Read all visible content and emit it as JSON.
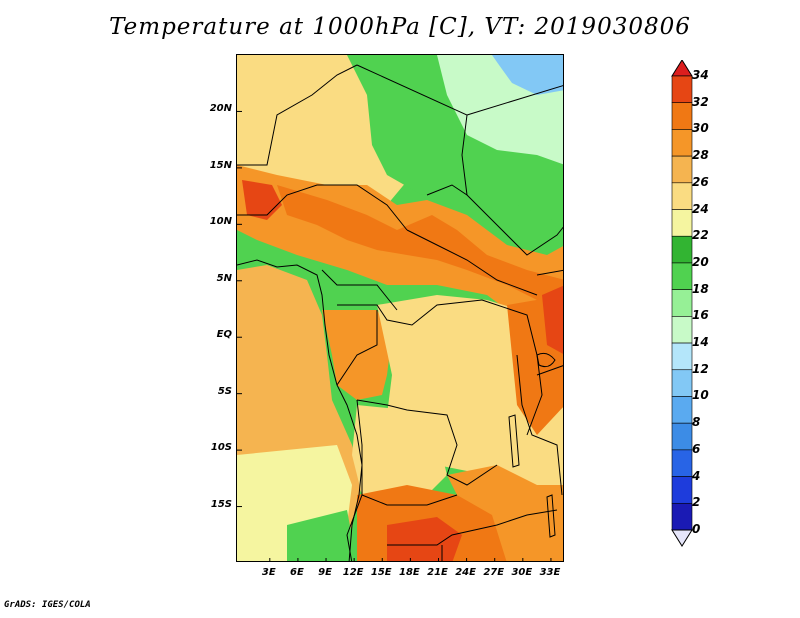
{
  "title": "Temperature at 1000hPa [C], VT: 2019030806",
  "footer": "GrADS: IGES/COLA",
  "map": {
    "variable": "Temperature at 1000hPa",
    "units": "C",
    "valid_time": "2019030806",
    "lat_range": [
      -20,
      25
    ],
    "lon_range": [
      -0.5,
      34.5
    ],
    "lat_labels": [
      {
        "lat": 20,
        "text": "20N"
      },
      {
        "lat": 15,
        "text": "15N"
      },
      {
        "lat": 10,
        "text": "10N"
      },
      {
        "lat": 5,
        "text": "5N"
      },
      {
        "lat": 0,
        "text": "EQ"
      },
      {
        "lat": -5,
        "text": "5S"
      },
      {
        "lat": -10,
        "text": "10S"
      },
      {
        "lat": -15,
        "text": "15S"
      }
    ],
    "lon_labels": [
      {
        "lon": 3,
        "text": "3E"
      },
      {
        "lon": 6,
        "text": "6E"
      },
      {
        "lon": 9,
        "text": "9E"
      },
      {
        "lon": 12,
        "text": "12E"
      },
      {
        "lon": 15,
        "text": "15E"
      },
      {
        "lon": 18,
        "text": "18E"
      },
      {
        "lon": 21,
        "text": "21E"
      },
      {
        "lon": 24,
        "text": "24E"
      },
      {
        "lon": 27,
        "text": "27E"
      },
      {
        "lon": 30,
        "text": "30E"
      },
      {
        "lon": 33,
        "text": "33E"
      }
    ]
  },
  "colorbar": {
    "levels": [
      "0",
      "2",
      "4",
      "6",
      "8",
      "10",
      "12",
      "14",
      "16",
      "18",
      "20",
      "22",
      "24",
      "26",
      "28",
      "30",
      "32",
      "34"
    ],
    "colors": [
      "#0a0a78",
      "#1a1ab4",
      "#1e3cdc",
      "#2864e6",
      "#3c8ce6",
      "#5aaaf0",
      "#82c8f5",
      "#b4e6fa",
      "#c8fac8",
      "#96f096",
      "#50d250",
      "#32b432",
      "#f5f5a0",
      "#fadc82",
      "#f5b450",
      "#f59628",
      "#f07814",
      "#e64614",
      "#dc1e1e"
    ],
    "below_color": "#e6e6fa"
  },
  "regions": [
    {
      "name": "sahara-north-warm",
      "color": "#fadc82"
    },
    {
      "name": "northeast-green",
      "color": "#50d250"
    },
    {
      "name": "northeast-light",
      "color": "#c8fac8"
    },
    {
      "name": "northeast-sky",
      "color": "#82c8f5"
    },
    {
      "name": "sahel-warm-band",
      "color": "#f59628"
    },
    {
      "name": "sahel-hot-core",
      "color": "#f07814"
    },
    {
      "name": "west-hot-spot",
      "color": "#e64614"
    },
    {
      "name": "atlantic-ocean",
      "color": "#f5b450"
    },
    {
      "name": "congo-basin",
      "color": "#f59628"
    },
    {
      "name": "gabon-coast",
      "color": "#fadc82"
    },
    {
      "name": "angola-plateau",
      "color": "#fadc82"
    },
    {
      "name": "east-highlands-hot",
      "color": "#f07814"
    },
    {
      "name": "east-africa-red",
      "color": "#e64614"
    },
    {
      "name": "southern-hot",
      "color": "#f07814"
    },
    {
      "name": "southern-red-core",
      "color": "#e64614"
    },
    {
      "name": "southwest-coast-pale",
      "color": "#f5f5a0"
    },
    {
      "name": "southwest-green",
      "color": "#50d250"
    },
    {
      "name": "angola-south-warm",
      "color": "#f59628"
    }
  ]
}
